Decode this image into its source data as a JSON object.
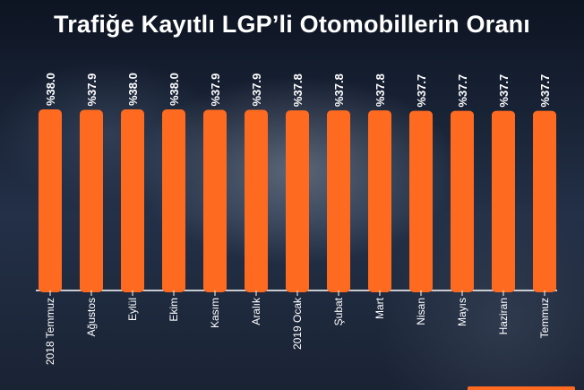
{
  "title": "Trafiğe Kayıtlı LGP’li Otomobillerin Oranı",
  "colors": {
    "bar": "#ff6a21",
    "text": "#ffffff",
    "axis": "#ffffff"
  },
  "chart_data": {
    "type": "bar",
    "title": "Trafiğe Kayıtlı LGP’li Otomobillerin Oranı",
    "categories": [
      "2018 Temmuz",
      "Ağustos",
      "Eylül",
      "Ekim",
      "Kasım",
      "Aralık",
      "2019 Ocak",
      "Şubat",
      "Mart",
      "Nisan",
      "Mayıs",
      "Haziran",
      "Temmuz"
    ],
    "values": [
      38.0,
      37.9,
      38.0,
      38.0,
      37.9,
      37.9,
      37.8,
      37.8,
      37.8,
      37.7,
      37.7,
      37.7,
      37.7
    ],
    "value_labels": [
      "%38.0",
      "%37.9",
      "%38.0",
      "%38.0",
      "%37.9",
      "%37.9",
      "%37.8",
      "%37.8",
      "%37.8",
      "%37.7",
      "%37.7",
      "%37.7",
      "%37.7"
    ],
    "xlabel": "",
    "ylabel": "",
    "ylim": [
      0,
      38.0
    ],
    "grid": false,
    "legend": "none"
  }
}
